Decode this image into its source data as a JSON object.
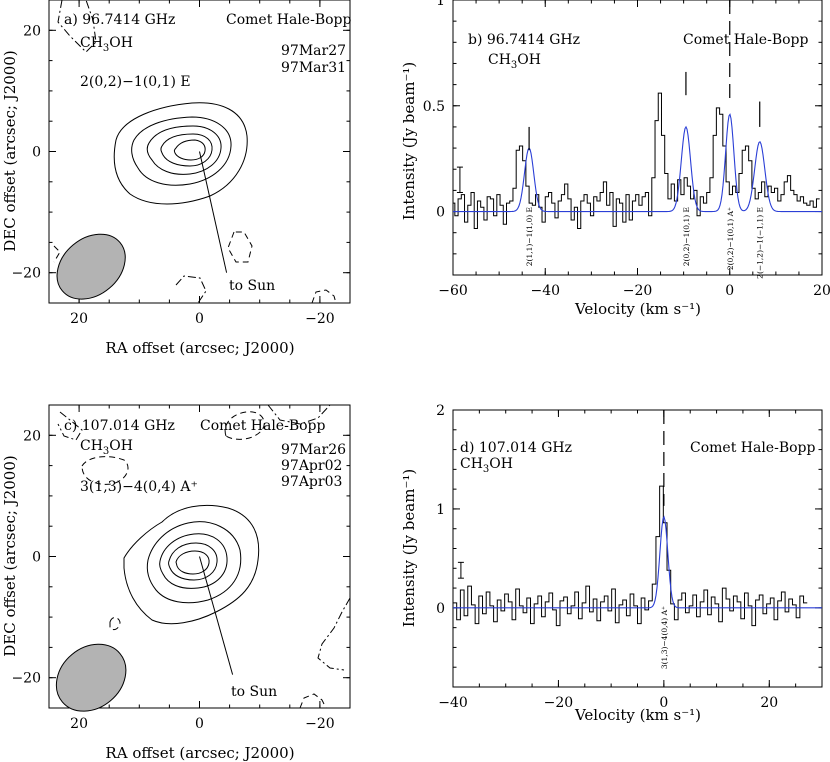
{
  "chart_data": [
    {
      "id": "a",
      "type": "contour_map",
      "panel_label": "a)",
      "frequency": "96.7414 GHz",
      "source": "Comet Hale-Bopp",
      "molecule": {
        "main": "CH",
        "sub": "3",
        "tail": "OH"
      },
      "transition": "2(0,2)−1(0,1) E",
      "dates": [
        "97Mar27",
        "97Mar31"
      ],
      "pointer_label": "to Sun",
      "xlabel": "RA offset (arcsec; J2000)",
      "ylabel": "DEC offset (arcsec; J2000)",
      "xlim": [
        25,
        -25
      ],
      "ylim": [
        -25,
        25
      ],
      "xticks": [
        {
          "v": 20,
          "t": "20"
        },
        {
          "v": 0,
          "t": "0"
        },
        {
          "v": -20,
          "t": "−20"
        }
      ],
      "yticks": [
        {
          "v": 20,
          "t": "20"
        },
        {
          "v": 0,
          "t": "0"
        },
        {
          "v": -20,
          "t": "−20"
        }
      ],
      "beam": {
        "center": [
          18,
          -19
        ],
        "major_arcsec": 10,
        "minor_arcsec": 7.5,
        "pa_deg": 40
      },
      "sun_line": {
        "from": [
          0,
          0
        ],
        "to": [
          -4.5,
          -20
        ]
      },
      "contour_levels": 5
    },
    {
      "id": "b",
      "type": "spectrum",
      "panel_label": "b)",
      "frequency": "96.7414 GHz",
      "source": "Comet Hale-Bopp",
      "molecule": {
        "main": "CH",
        "sub": "3",
        "tail": "OH"
      },
      "xlabel": "Velocity (km s⁻¹)",
      "ylabel": "Intensity (Jy beam⁻¹)",
      "xlim": [
        -60,
        20
      ],
      "ylim": [
        -0.3,
        1.0
      ],
      "xticks": [
        {
          "v": -60,
          "t": "−60"
        },
        {
          "v": -40,
          "t": "−40"
        },
        {
          "v": -20,
          "t": "−20"
        },
        {
          "v": 0,
          "t": "0"
        },
        {
          "v": 20,
          "t": "20"
        }
      ],
      "yticks": [
        {
          "v": 0,
          "t": "0"
        },
        {
          "v": 0.5,
          "t": "0.5"
        },
        {
          "v": 1,
          "t": "1"
        }
      ],
      "error_bar": {
        "v": -58.5,
        "y": 0.15,
        "half": 0.06
      },
      "dashed_line_velocity": 0,
      "lines": [
        {
          "v": -43.5,
          "amp": 0.3,
          "sigma": 1.0,
          "label": "2(1,1)−1(1,0) E",
          "marker_y": [
            0.29,
            0.4
          ]
        },
        {
          "v": -9.5,
          "amp": 0.4,
          "sigma": 1.0,
          "label": "2(0,2)−1(0,1) E",
          "marker_y": [
            0.55,
            0.66
          ]
        },
        {
          "v": 0.0,
          "amp": 0.46,
          "sigma": 0.9,
          "label": "2(0,2)−1(0,1) A⁺",
          "marker_y": null
        },
        {
          "v": 6.5,
          "amp": 0.33,
          "sigma": 1.1,
          "label": "2(−1,2)−1(−1,1) E",
          "marker_y": [
            0.4,
            0.52
          ]
        }
      ],
      "spectrum": {
        "v_start": -61,
        "dv": 0.7,
        "values": [
          0.01,
          0.04,
          -0.02,
          0.06,
          0.08,
          -0.05,
          0.03,
          0.09,
          -0.08,
          0.05,
          0.02,
          -0.04,
          0.07,
          0.06,
          -0.02,
          0.08,
          0.03,
          -0.06,
          0.04,
          0.05,
          0.11,
          0.29,
          0.31,
          0.24,
          0.12,
          0.04,
          0.03,
          0.08,
          0.02,
          -0.05,
          0.07,
          0.09,
          0.04,
          -0.03,
          0.05,
          0.08,
          0.13,
          0.06,
          -0.04,
          0.02,
          -0.08,
          0.05,
          0.08,
          0.04,
          -0.02,
          0.07,
          0.05,
          0.09,
          0.14,
          0.03,
          0.09,
          -0.07,
          0.06,
          0.04,
          -0.05,
          0.08,
          -0.04,
          0.05,
          0.08,
          0.03,
          0.07,
          0.09,
          -0.02,
          0.16,
          0.43,
          0.56,
          0.36,
          0.18,
          0.06,
          0.13,
          0.05,
          0.15,
          0.08,
          0.16,
          0.12,
          0.06,
          0.1,
          -0.02,
          0.07,
          0.04,
          0.09,
          0.16,
          0.36,
          0.49,
          0.46,
          0.31,
          0.14,
          0.08,
          0.12,
          0.09,
          0.18,
          0.29,
          0.31,
          0.24,
          0.11,
          0.06,
          0.09,
          0.14,
          0.07,
          0.12,
          0.09,
          0.11,
          0.05,
          0.08,
          0.14,
          0.17,
          0.1,
          0.08,
          0.05,
          0.07,
          0.04,
          0.03,
          0.05,
          0.02,
          0.06
        ]
      }
    },
    {
      "id": "c",
      "type": "contour_map",
      "panel_label": "c)",
      "frequency": "107.014 GHz",
      "source": "Comet Hale-Bopp",
      "molecule": {
        "main": "CH",
        "sub": "3",
        "tail": "OH"
      },
      "transition": "3(1,3)−4(0,4) A⁺",
      "dates": [
        "97Mar26",
        "97Apr02",
        "97Apr03"
      ],
      "pointer_label": "to Sun",
      "xlabel": "RA offset (arcsec; J2000)",
      "ylabel": "DEC offset (arcsec; J2000)",
      "xlim": [
        25,
        -25
      ],
      "ylim": [
        -25,
        25
      ],
      "xticks": [
        {
          "v": 20,
          "t": "20"
        },
        {
          "v": 0,
          "t": "0"
        },
        {
          "v": -20,
          "t": "−20"
        }
      ],
      "yticks": [
        {
          "v": 20,
          "t": "20"
        },
        {
          "v": 0,
          "t": "0"
        },
        {
          "v": -20,
          "t": "−20"
        }
      ],
      "beam": {
        "center": [
          18,
          -20
        ],
        "major_arcsec": 10,
        "minor_arcsec": 8,
        "pa_deg": 40
      },
      "sun_line": {
        "from": [
          0,
          0
        ],
        "to": [
          -5.5,
          -19.5
        ]
      },
      "contour_levels": 5
    },
    {
      "id": "d",
      "type": "spectrum",
      "panel_label": "d)",
      "frequency": "107.014 GHz",
      "source": "Comet Hale-Bopp",
      "molecule": {
        "main": "CH",
        "sub": "3",
        "tail": "OH"
      },
      "xlabel": "Velocity (km s⁻¹)",
      "ylabel": "Intensity (Jy beam⁻¹)",
      "xlim": [
        -40,
        30
      ],
      "ylim": [
        -0.8,
        2.0
      ],
      "xticks": [
        {
          "v": -40,
          "t": "−40"
        },
        {
          "v": -20,
          "t": "−20"
        },
        {
          "v": 0,
          "t": "0"
        },
        {
          "v": 20,
          "t": "20"
        }
      ],
      "yticks": [
        {
          "v": 0,
          "t": "0"
        },
        {
          "v": 1,
          "t": "1"
        },
        {
          "v": 2,
          "t": "2"
        }
      ],
      "error_bar": {
        "v": -38.5,
        "y": 0.38,
        "half": 0.08
      },
      "dashed_line_velocity": 0,
      "lines": [
        {
          "v": 0.0,
          "amp": 0.92,
          "sigma": 0.75,
          "label": "3(1,3)−4(0,4) A⁺",
          "marker_y": null
        }
      ],
      "spectrum": {
        "v_start": -40,
        "dv": 0.7,
        "values": [
          0.05,
          -0.12,
          0.18,
          -0.08,
          0.22,
          0.03,
          -0.16,
          0.12,
          -0.06,
          0.16,
          0.02,
          -0.14,
          0.08,
          -0.03,
          0.14,
          0.06,
          -0.12,
          0.19,
          0.02,
          -0.05,
          0.1,
          -0.16,
          0.04,
          0.12,
          -0.09,
          0.06,
          0.15,
          -0.02,
          -0.18,
          0.07,
          0.11,
          -0.06,
          0.02,
          0.16,
          -0.11,
          0.05,
          0.22,
          -0.04,
          0.09,
          -0.13,
          0.06,
          0.12,
          -0.03,
          0.19,
          -0.15,
          0.03,
          0.08,
          -0.08,
          0.14,
          0.02,
          -0.16,
          0.1,
          -0.02,
          0.07,
          0.24,
          0.72,
          1.23,
          0.86,
          0.38,
          0.04,
          -0.12,
          0.08,
          0.15,
          -0.05,
          0.02,
          0.13,
          -0.09,
          0.06,
          0.18,
          -0.07,
          0.11,
          0.04,
          -0.14,
          0.2,
          0.09,
          -0.03,
          0.12,
          0.06,
          -0.11,
          0.15,
          0.02,
          -0.18,
          0.08,
          0.13,
          -0.06,
          0.04,
          0.1,
          -0.12,
          0.07,
          0.16,
          -0.04,
          0.09,
          0.03,
          -0.1,
          0.12,
          0.05
        ]
      }
    }
  ]
}
